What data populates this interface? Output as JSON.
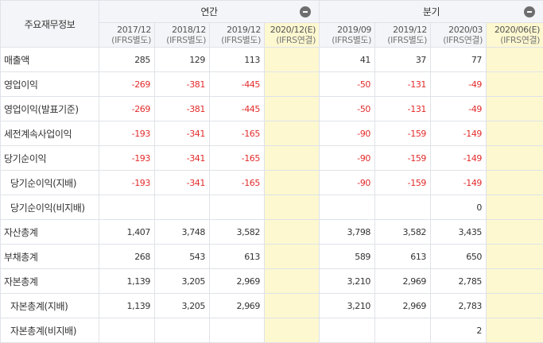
{
  "header": {
    "row_label": "주요재무정보",
    "groups": [
      {
        "label": "연간",
        "collapse_icon": "minus-circle-icon"
      },
      {
        "label": "분기",
        "collapse_icon": "minus-circle-icon"
      }
    ],
    "periods": [
      {
        "period": "2017/12",
        "type": "(IFRS별도)"
      },
      {
        "period": "2018/12",
        "type": "(IFRS별도)"
      },
      {
        "period": "2019/12",
        "type": "(IFRS별도)"
      },
      {
        "period": "2020/12(E)",
        "type": "(IFRS연결)"
      },
      {
        "period": "2019/09",
        "type": "(IFRS별도)"
      },
      {
        "period": "2019/12",
        "type": "(IFRS별도)"
      },
      {
        "period": "2020/03",
        "type": "(IFRS연결)"
      },
      {
        "period": "2020/06(E)",
        "type": "(IFRS연결)"
      }
    ]
  },
  "rows": [
    {
      "label": "매출액",
      "values": [
        "285",
        "129",
        "113",
        "",
        "41",
        "37",
        "77",
        ""
      ]
    },
    {
      "label": "영업이익",
      "values": [
        "-269",
        "-381",
        "-445",
        "",
        "-50",
        "-131",
        "-49",
        ""
      ]
    },
    {
      "label": "영업이익(발표기준)",
      "values": [
        "-269",
        "-381",
        "-445",
        "",
        "-50",
        "-131",
        "-49",
        ""
      ]
    },
    {
      "label": "세전계속사업이익",
      "values": [
        "-193",
        "-341",
        "-165",
        "",
        "-90",
        "-159",
        "-149",
        ""
      ]
    },
    {
      "label": "당기순이익",
      "values": [
        "-193",
        "-341",
        "-165",
        "",
        "-90",
        "-159",
        "-149",
        ""
      ]
    },
    {
      "label": "당기순이익(지배)",
      "values": [
        "-193",
        "-341",
        "-165",
        "",
        "-90",
        "-159",
        "-149",
        ""
      ]
    },
    {
      "label": "당기순이익(비지배)",
      "values": [
        "",
        "",
        "",
        "",
        "",
        "",
        "0",
        ""
      ]
    },
    {
      "label": "자산총계",
      "values": [
        "1,407",
        "3,748",
        "3,582",
        "",
        "3,798",
        "3,582",
        "3,435",
        ""
      ]
    },
    {
      "label": "부채총계",
      "values": [
        "268",
        "543",
        "613",
        "",
        "589",
        "613",
        "650",
        ""
      ]
    },
    {
      "label": "자본총계",
      "values": [
        "1,139",
        "3,205",
        "2,969",
        "",
        "3,210",
        "2,969",
        "2,785",
        ""
      ]
    },
    {
      "label": "자본총계(지배)",
      "values": [
        "1,139",
        "3,205",
        "2,969",
        "",
        "3,210",
        "2,969",
        "2,783",
        ""
      ]
    },
    {
      "label": "자본총계(비지배)",
      "values": [
        "",
        "",
        "",
        "",
        "",
        "",
        "2",
        ""
      ]
    }
  ],
  "colors": {
    "negative": "#e22b2b",
    "estimate_bg": "#fdf8d0",
    "header_bg": "#f4f5f8",
    "border": "#dfe2e8"
  }
}
